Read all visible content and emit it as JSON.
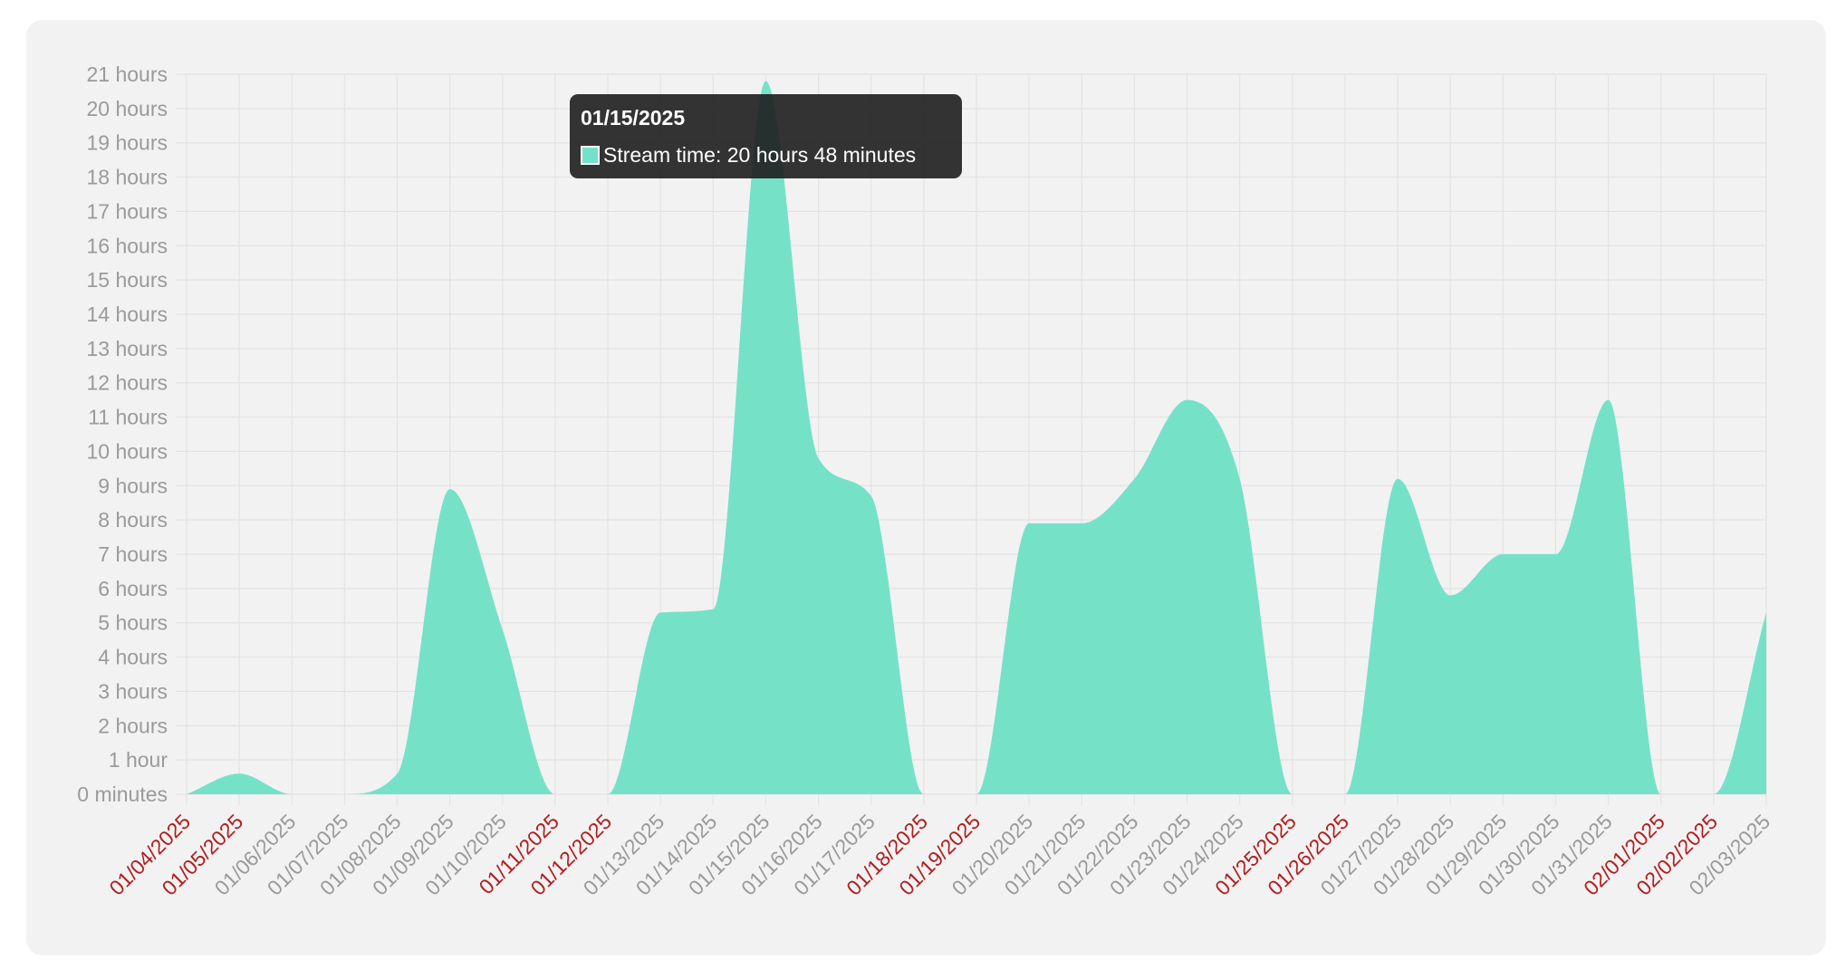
{
  "colors": {
    "fill": "#75e2c8",
    "grid": "#e3e3e3",
    "weekday_label": "#9a9a9a",
    "weekend_label": "#b21d1d",
    "tooltip_bg": "#1e1e1e"
  },
  "tooltip": {
    "title": "01/15/2025",
    "series_label": "Stream time: 20 hours 48 minutes"
  },
  "chart_data": {
    "type": "area",
    "smooth": true,
    "grid": true,
    "ylim": [
      0,
      21
    ],
    "y_tick_labels": [
      "0 minutes",
      "1 hour",
      "2 hours",
      "3 hours",
      "4 hours",
      "5 hours",
      "6 hours",
      "7 hours",
      "8 hours",
      "9 hours",
      "10 hours",
      "11 hours",
      "12 hours",
      "13 hours",
      "14 hours",
      "15 hours",
      "16 hours",
      "17 hours",
      "18 hours",
      "19 hours",
      "20 hours",
      "21 hours"
    ],
    "x": [
      "01/04/2025",
      "01/05/2025",
      "01/06/2025",
      "01/07/2025",
      "01/08/2025",
      "01/09/2025",
      "01/10/2025",
      "01/11/2025",
      "01/12/2025",
      "01/13/2025",
      "01/14/2025",
      "01/15/2025",
      "01/16/2025",
      "01/17/2025",
      "01/18/2025",
      "01/19/2025",
      "01/20/2025",
      "01/21/2025",
      "01/22/2025",
      "01/23/2025",
      "01/24/2025",
      "01/25/2025",
      "01/26/2025",
      "01/27/2025",
      "01/28/2025",
      "01/29/2025",
      "01/30/2025",
      "01/31/2025",
      "02/01/2025",
      "02/02/2025",
      "02/03/2025"
    ],
    "weekend": [
      true,
      true,
      false,
      false,
      false,
      false,
      false,
      true,
      true,
      false,
      false,
      false,
      false,
      false,
      true,
      true,
      false,
      false,
      false,
      false,
      false,
      true,
      true,
      false,
      false,
      false,
      false,
      false,
      true,
      true,
      false
    ],
    "series": [
      {
        "values": [
          0,
          0.6,
          0,
          0,
          0.6,
          8.9,
          4.8,
          0,
          0,
          5.3,
          5.4,
          20.8,
          9.8,
          8.7,
          0,
          0,
          7.9,
          7.9,
          9.2,
          11.5,
          9.2,
          0,
          0,
          9.2,
          5.8,
          7.0,
          7.0,
          11.5,
          0,
          0,
          5.3
        ]
      }
    ],
    "highlight_index": 11
  }
}
